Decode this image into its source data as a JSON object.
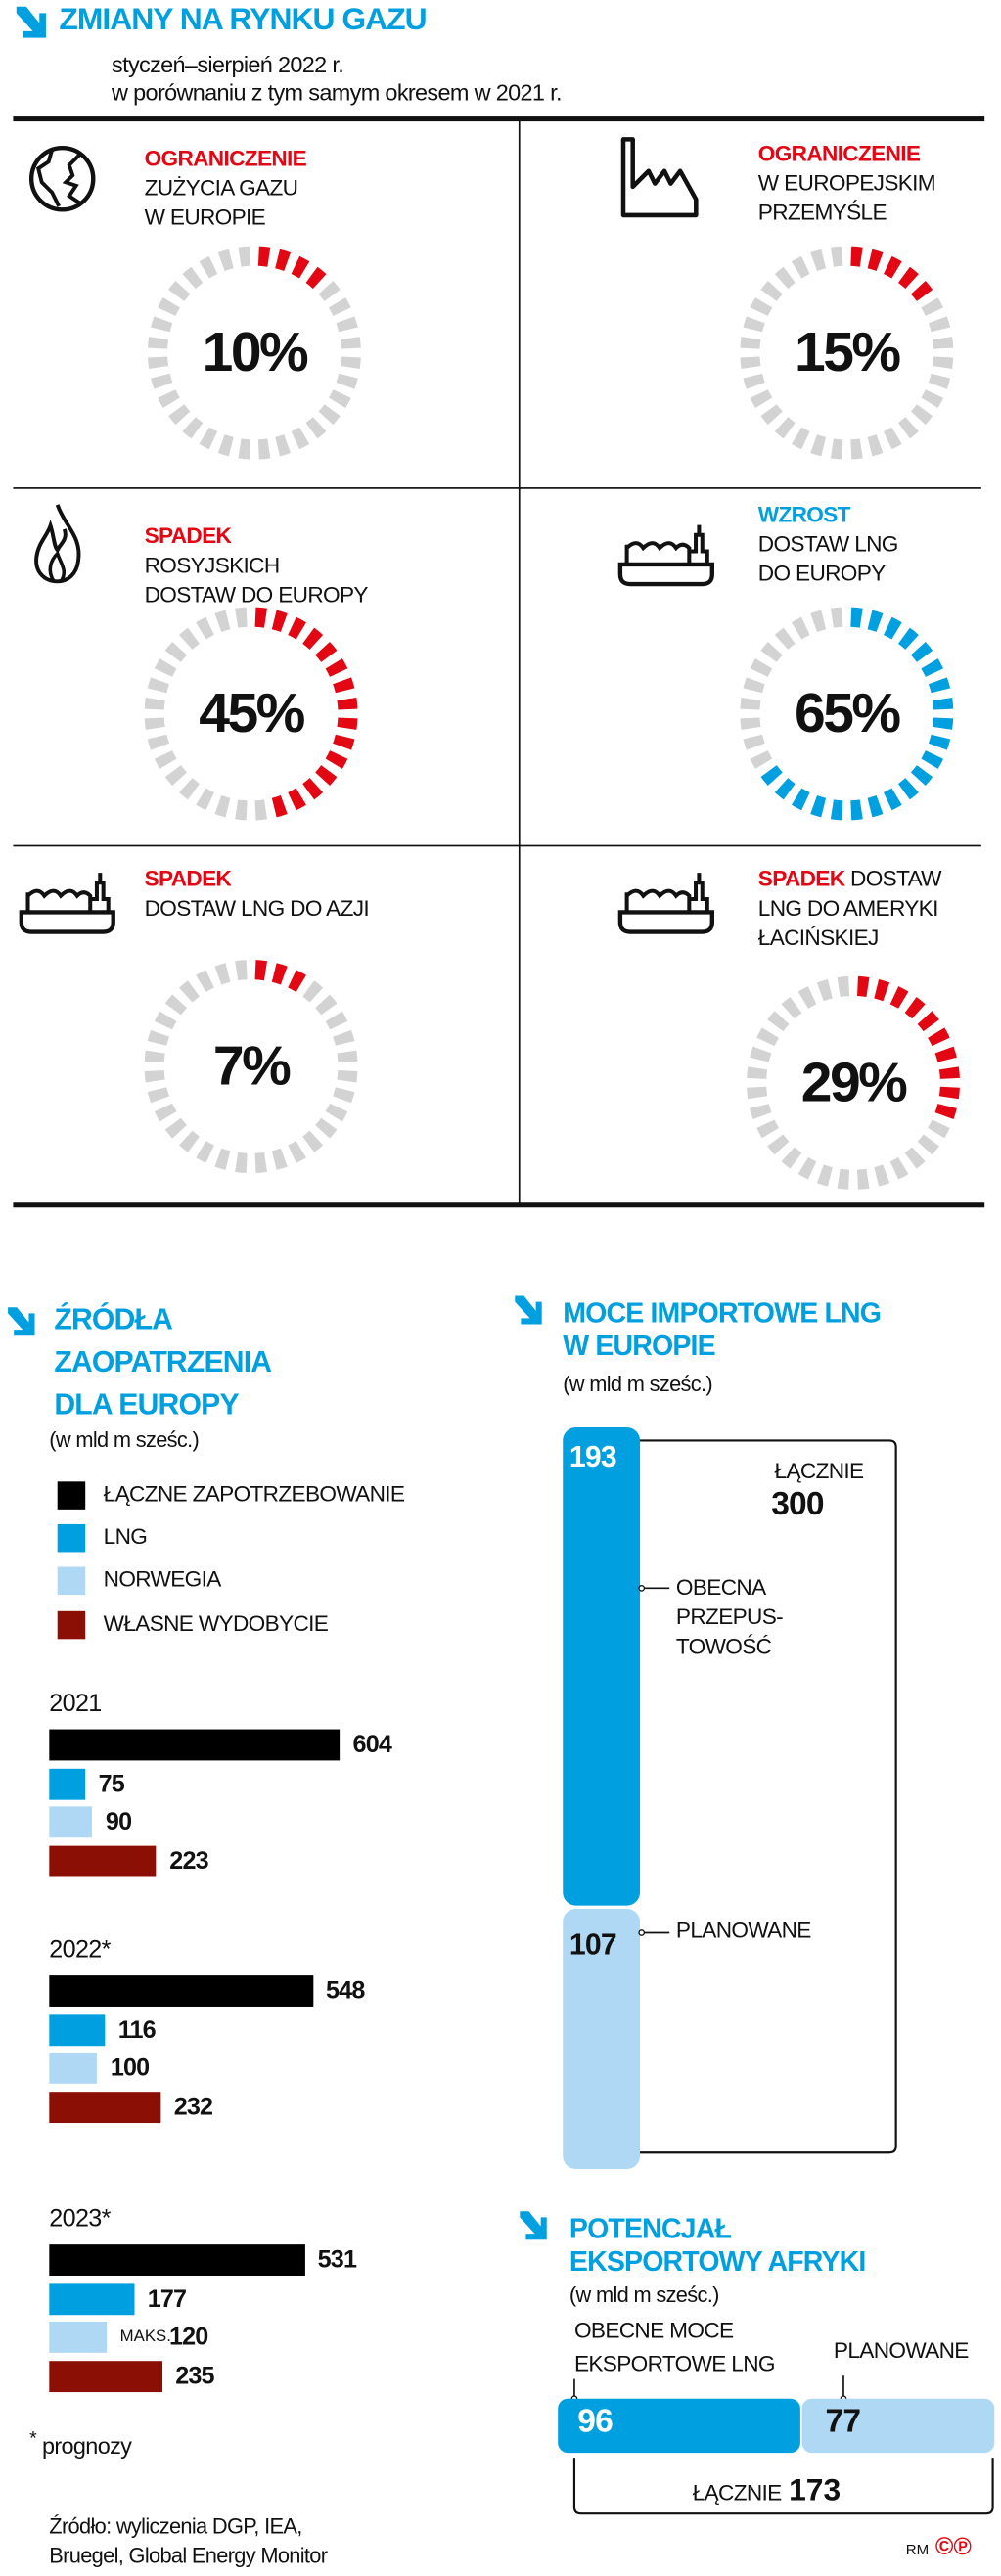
{
  "header": {
    "title": "ZMIANY NA RYNKU GAZU",
    "subtitle_line1": "styczeń–sierpień 2022 r.",
    "subtitle_line2": "w porównaniu z tym samym okresem w 2021 r."
  },
  "rings": [
    {
      "icon": "globe-icon",
      "keyword": "OGRANICZENIE",
      "text_lines": [
        "ZUŻYCIA GAZU",
        "W EUROPIE"
      ],
      "value": "10%",
      "percent": 10,
      "color": "#e30613"
    },
    {
      "icon": "factory-icon",
      "keyword": "OGRANICZENIE",
      "text_lines": [
        "W EUROPEJSKIM",
        "PRZEMYŚLE"
      ],
      "value": "15%",
      "percent": 15,
      "color": "#e30613"
    },
    {
      "icon": "flame-icon",
      "keyword": "SPADEK",
      "text_lines": [
        "ROSYJSKICH",
        "DOSTAW DO EUROPY"
      ],
      "value": "45%",
      "percent": 45,
      "color": "#e30613"
    },
    {
      "icon": "ship-icon",
      "keyword": "WZROST",
      "text_lines": [
        "DOSTAW LNG",
        "DO EUROPY"
      ],
      "value": "65%",
      "percent": 65,
      "color": "#00a0e0"
    },
    {
      "icon": "ship-icon",
      "keyword": "SPADEK",
      "text_lines": [
        "DOSTAW LNG DO AZJI"
      ],
      "value": "7%",
      "percent": 7,
      "color": "#e30613"
    },
    {
      "icon": "ship-icon",
      "keyword": "SPADEK",
      "keyword_suffix": " DOSTAW",
      "text_lines": [
        "LNG DO AMERYKI",
        "ŁACIŃSKIEJ"
      ],
      "value": "29%",
      "percent": 29,
      "color": "#e30613"
    }
  ],
  "ring_track_color": "#d3d3d3",
  "sources": {
    "title_lines": [
      "ŹRÓDŁA",
      "ZAOPATRZENIA",
      "DLA EUROPY"
    ],
    "unit": "(w mld m sześc.)",
    "footnote_mark": "*",
    "footnote": "prognozy",
    "source_line1": "Źródło: wyliczenia DGP, IEA,",
    "source_line2": "Bruegel, Global Energy Monitor"
  },
  "imports": {
    "title_lines": [
      "MOCE IMPORTOWE LNG",
      "W EUROPIE"
    ],
    "unit": "(w mld m sześc.)",
    "total_label": "ŁĄCZNIE",
    "total_value": "300",
    "current_label_lines": [
      "OBECNA",
      "PRZEPUS-",
      "TOWOŚĆ"
    ],
    "planned_label": "PLANOWANE"
  },
  "africa": {
    "title_lines": [
      "POTENCJAŁ",
      "EKSPORTOWY AFRYKI"
    ],
    "unit": "(w mld m sześc.)",
    "current_label_lines": [
      "OBECNE MOCE",
      "EKSPORTOWE LNG"
    ],
    "planned_label": "PLANOWANE",
    "total_label": "ŁĄCZNIE",
    "total_value": "173"
  },
  "credit": {
    "initials": "RM",
    "logo_text": "©℗"
  },
  "chart_data": [
    {
      "type": "bar",
      "title": "ŹRÓDŁA ZAOPATRZENIA DLA EUROPY",
      "ylabel": "(w mld m sześc.)",
      "categories": [
        "2021",
        "2022*",
        "2023*"
      ],
      "legend_placement": "top-left",
      "series": [
        {
          "name": "ŁĄCZNE ZAPOTRZEBOWANIE",
          "color": "#000000",
          "values": [
            604,
            548,
            531
          ]
        },
        {
          "name": "LNG",
          "color": "#00a0e0",
          "values": [
            75,
            116,
            177
          ]
        },
        {
          "name": "NORWEGIA",
          "color": "#aed8f4",
          "values": [
            90,
            100,
            120
          ]
        },
        {
          "name": "WŁASNE WYDOBYCIE",
          "color": "#8b0f04",
          "values": [
            223,
            232,
            235
          ]
        }
      ],
      "annotations": [
        {
          "category": "2023*",
          "series": "NORWEGIA",
          "text": "MAKS."
        }
      ]
    },
    {
      "type": "bar",
      "title": "MOCE IMPORTOWE LNG W EUROPIE",
      "ylabel": "(w mld m sześc.)",
      "orientation": "vertical-stacked",
      "segments": [
        {
          "name": "OBECNA PRZEPUSTOWOŚĆ",
          "value": 193,
          "color": "#00a0e0"
        },
        {
          "name": "PLANOWANE",
          "value": 107,
          "color": "#aed8f4"
        }
      ],
      "total": 300
    },
    {
      "type": "bar",
      "title": "POTENCJAŁ EKSPORTOWY AFRYKI",
      "ylabel": "(w mld m sześc.)",
      "orientation": "horizontal-stacked",
      "segments": [
        {
          "name": "OBECNE MOCE EKSPORTOWE LNG",
          "value": 96,
          "color": "#00a0e0"
        },
        {
          "name": "PLANOWANE",
          "value": 77,
          "color": "#aed8f4"
        }
      ],
      "total": 173
    }
  ]
}
